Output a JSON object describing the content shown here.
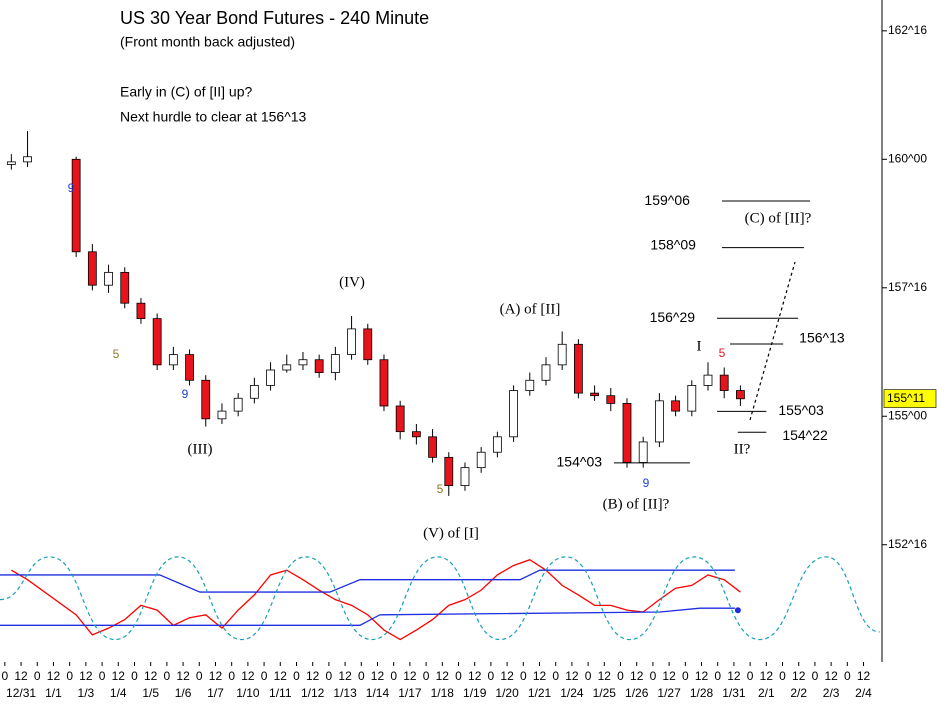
{
  "chart_data": {
    "type": "candlestick",
    "title": "US 30 Year Bond Futures - 240 Minute",
    "subtitle": "(Front month back adjusted)",
    "notes": [
      "Early in (C) of [II] up?",
      "Next hurdle to clear at 156^13"
    ],
    "up_color": "#ffffff",
    "down_color": "#e8141c",
    "x": [
      0.2,
      0.7,
      2.2,
      2.7,
      3.2,
      3.7,
      4.2,
      4.7,
      5.2,
      5.7,
      6.2,
      6.7,
      7.2,
      7.7,
      8.2,
      8.7,
      9.2,
      9.7,
      10.2,
      10.7,
      11.2,
      11.7,
      12.2,
      12.7,
      13.2,
      13.7,
      14.2,
      14.7,
      15.2,
      15.7,
      16.2,
      16.7,
      17.2,
      17.7,
      18.2,
      18.7,
      19.2,
      19.7,
      20.2,
      20.7,
      21.2,
      21.7,
      22.2,
      22.7
    ],
    "open": [
      159.9,
      159.95,
      160.0,
      158.2,
      157.55,
      157.8,
      157.2,
      156.9,
      156.0,
      156.2,
      155.7,
      154.95,
      155.1,
      155.35,
      155.6,
      155.9,
      156.0,
      156.1,
      155.85,
      156.2,
      156.7,
      156.1,
      155.2,
      154.7,
      154.6,
      154.2,
      153.65,
      154.0,
      154.3,
      154.6,
      155.5,
      155.7,
      156.0,
      156.4,
      155.45,
      155.4,
      155.25,
      154.1,
      154.5,
      155.3,
      155.1,
      155.6,
      155.8,
      155.5
    ],
    "high": [
      160.1,
      160.55,
      160.05,
      158.35,
      157.95,
      157.9,
      157.3,
      157.0,
      156.35,
      156.3,
      155.8,
      155.25,
      155.45,
      155.75,
      156.05,
      156.2,
      156.25,
      156.2,
      156.35,
      156.95,
      156.8,
      156.2,
      155.3,
      154.85,
      154.75,
      154.3,
      154.1,
      154.4,
      154.7,
      155.6,
      155.85,
      156.15,
      156.65,
      156.5,
      155.6,
      155.55,
      155.35,
      154.6,
      155.45,
      155.4,
      155.7,
      156.05,
      155.95,
      155.6
    ],
    "low": [
      159.8,
      159.85,
      158.1,
      157.45,
      157.4,
      157.1,
      156.8,
      155.9,
      155.9,
      155.6,
      154.8,
      154.85,
      155.0,
      155.25,
      155.5,
      155.85,
      155.9,
      155.75,
      155.7,
      156.1,
      156.0,
      155.1,
      154.55,
      154.45,
      154.1,
      153.45,
      153.55,
      153.9,
      154.2,
      154.5,
      155.4,
      155.6,
      155.9,
      155.35,
      155.3,
      155.1,
      154.0,
      154.0,
      154.4,
      155.0,
      155.0,
      155.5,
      155.35,
      155.2
    ],
    "close": [
      159.95,
      160.05,
      158.2,
      157.55,
      157.8,
      157.2,
      156.9,
      156.0,
      156.2,
      155.7,
      154.95,
      155.1,
      155.35,
      155.6,
      155.9,
      156.0,
      156.1,
      155.85,
      156.2,
      156.7,
      156.1,
      155.2,
      154.7,
      154.6,
      154.2,
      153.65,
      154.0,
      154.3,
      154.6,
      155.5,
      155.7,
      156.0,
      156.4,
      155.45,
      155.4,
      155.25,
      154.1,
      154.5,
      155.3,
      155.1,
      155.6,
      155.8,
      155.5,
      155.34
    ],
    "xlim": [
      -0.15,
      27.07
    ],
    "ylim": [
      152.3,
      163.1
    ],
    "yticks": [
      {
        "value": 162.5,
        "label": "162^16"
      },
      {
        "value": 160,
        "label": "160^00"
      },
      {
        "value": 157.5,
        "label": "157^16"
      },
      {
        "value": 155,
        "label": "155^00"
      },
      {
        "value": 152.5,
        "label": "152^16"
      }
    ],
    "last_price": {
      "value": 155.34375,
      "label": "155^11",
      "color": "#ffff00"
    },
    "xticks": [
      {
        "value": 0,
        "label": "0"
      },
      {
        "value": 0.5,
        "label": "12"
      },
      {
        "value": 1,
        "label": "0"
      },
      {
        "value": 1.5,
        "label": "12"
      },
      {
        "value": 2,
        "label": "0"
      },
      {
        "value": 2.5,
        "label": "12"
      },
      {
        "value": 3,
        "label": "0"
      },
      {
        "value": 3.5,
        "label": "12"
      },
      {
        "value": 4,
        "label": "0"
      },
      {
        "value": 4.5,
        "label": "12"
      },
      {
        "value": 5,
        "label": "0"
      },
      {
        "value": 5.5,
        "label": "12"
      },
      {
        "value": 6,
        "label": "0"
      },
      {
        "value": 6.5,
        "label": "12"
      },
      {
        "value": 7,
        "label": "0"
      },
      {
        "value": 7.5,
        "label": "12"
      },
      {
        "value": 8,
        "label": "0"
      },
      {
        "value": 8.5,
        "label": "12"
      },
      {
        "value": 9,
        "label": "0"
      },
      {
        "value": 9.5,
        "label": "12"
      },
      {
        "value": 10,
        "label": "0"
      },
      {
        "value": 10.5,
        "label": "12"
      },
      {
        "value": 11,
        "label": "0"
      },
      {
        "value": 11.5,
        "label": "12"
      },
      {
        "value": 12,
        "label": "0"
      },
      {
        "value": 12.5,
        "label": "12"
      },
      {
        "value": 13,
        "label": "0"
      },
      {
        "value": 13.5,
        "label": "12"
      },
      {
        "value": 14,
        "label": "0"
      },
      {
        "value": 14.5,
        "label": "12"
      },
      {
        "value": 15,
        "label": "0"
      },
      {
        "value": 15.5,
        "label": "12"
      },
      {
        "value": 16,
        "label": "0"
      },
      {
        "value": 16.5,
        "label": "12"
      },
      {
        "value": 17,
        "label": "0"
      },
      {
        "value": 17.5,
        "label": "12"
      },
      {
        "value": 18,
        "label": "0"
      },
      {
        "value": 18.5,
        "label": "12"
      },
      {
        "value": 19,
        "label": "0"
      },
      {
        "value": 19.5,
        "label": "12"
      },
      {
        "value": 20,
        "label": "0"
      },
      {
        "value": 20.5,
        "label": "12"
      },
      {
        "value": 21,
        "label": "0"
      },
      {
        "value": 21.5,
        "label": "12"
      },
      {
        "value": 22,
        "label": "0"
      },
      {
        "value": 22.5,
        "label": "12"
      },
      {
        "value": 23,
        "label": "0"
      },
      {
        "value": 23.5,
        "label": "12"
      },
      {
        "value": 24,
        "label": "0"
      },
      {
        "value": 24.5,
        "label": "12"
      },
      {
        "value": 25,
        "label": "0"
      },
      {
        "value": 25.5,
        "label": "12"
      },
      {
        "value": 26,
        "label": "0"
      },
      {
        "value": 26.5,
        "label": "12"
      }
    ],
    "date_ticks": [
      {
        "value": 0.5,
        "label": "12/31"
      },
      {
        "value": 1.5,
        "label": "1/1"
      },
      {
        "value": 2.5,
        "label": "1/3"
      },
      {
        "value": 3.5,
        "label": "1/4"
      },
      {
        "value": 4.5,
        "label": "1/5"
      },
      {
        "value": 5.5,
        "label": "1/6"
      },
      {
        "value": 6.5,
        "label": "1/7"
      },
      {
        "value": 7.5,
        "label": "1/10"
      },
      {
        "value": 8.5,
        "label": "1/11"
      },
      {
        "value": 9.5,
        "label": "1/12"
      },
      {
        "value": 10.5,
        "label": "1/13"
      },
      {
        "value": 11.5,
        "label": "1/14"
      },
      {
        "value": 12.5,
        "label": "1/17"
      },
      {
        "value": 13.5,
        "label": "1/18"
      },
      {
        "value": 14.5,
        "label": "1/19"
      },
      {
        "value": 15.5,
        "label": "1/20"
      },
      {
        "value": 16.5,
        "label": "1/21"
      },
      {
        "value": 17.5,
        "label": "1/24"
      },
      {
        "value": 18.5,
        "label": "1/25"
      },
      {
        "value": 19.5,
        "label": "1/26"
      },
      {
        "value": 20.5,
        "label": "1/27"
      },
      {
        "value": 21.5,
        "label": "1/28"
      },
      {
        "value": 22.5,
        "label": "1/31"
      },
      {
        "value": 23.5,
        "label": "2/1"
      },
      {
        "value": 24.5,
        "label": "2/2"
      },
      {
        "value": 25.5,
        "label": "2/3"
      },
      {
        "value": 26.5,
        "label": "2/4"
      }
    ],
    "levels": [
      {
        "value": 159.1875,
        "label": "159^06",
        "x": [
          22.13,
          24.85
        ]
      },
      {
        "value": 158.28125,
        "label": "158^09",
        "x": [
          22.13,
          24.66
        ]
      },
      {
        "value": 156.90625,
        "label": "156^29",
        "x": [
          21.98,
          24.48
        ]
      },
      {
        "value": 156.40625,
        "label": "156^13",
        "x": [
          22.38,
          24.02
        ]
      },
      {
        "value": 155.09375,
        "label": "155^03",
        "x": [
          21.98,
          23.5
        ]
      },
      {
        "value": 154.6875,
        "label": "154^22",
        "x": [
          22.62,
          23.5
        ]
      },
      {
        "value": 154.09375,
        "label": "154^03",
        "x": [
          18.8,
          21.14
        ]
      }
    ],
    "annotations": [
      {
        "text": "(C) of [II]?",
        "color": "#000000"
      },
      {
        "text": "(IV)",
        "color": "#000000"
      },
      {
        "text": "(A) of [II]",
        "color": "#000000"
      },
      {
        "text": "I",
        "color": "#000000"
      },
      {
        "text": "(III)",
        "color": "#000000"
      },
      {
        "text": "(V) of [I]",
        "color": "#000000"
      },
      {
        "text": "(B) of [II]?",
        "color": "#000000"
      },
      {
        "text": "II?",
        "color": "#000000"
      },
      {
        "text": "9",
        "color": "#1f3fd0"
      },
      {
        "text": "5",
        "color": "#8a7a20"
      },
      {
        "text": "9",
        "color": "#1f3fd0"
      },
      {
        "text": "5",
        "color": "#8a7a20"
      },
      {
        "text": "9",
        "color": "#1f3fd0"
      },
      {
        "text": "5",
        "color": "#e8141c"
      }
    ],
    "indicator": {
      "ylim": [
        0,
        100
      ],
      "series": [
        {
          "color": "#ff0000",
          "values": [
            84,
            74,
            37,
            16,
            23,
            32,
            47,
            42,
            26,
            34,
            37,
            23,
            42,
            58,
            79,
            84,
            74,
            63,
            53,
            47,
            37,
            21,
            11,
            21,
            32,
            47,
            53,
            63,
            79,
            89,
            95,
            84,
            68,
            58,
            47,
            47,
            42,
            40,
            53,
            65,
            68,
            79,
            74,
            61
          ]
        },
        {
          "color": "#1e2ee0",
          "x": [
            -0.15,
            4.78,
            6.02,
            10.03,
            10.96,
            15.9,
            16.51,
            22.53
          ],
          "values": [
            79,
            79,
            61,
            61,
            74,
            74,
            84,
            84
          ]
        },
        {
          "color": "#1e2ee0",
          "x": [
            -0.15,
            10.96,
            11.57,
            20.22,
            21.45,
            22.53
          ],
          "values": [
            26,
            26,
            37,
            40,
            44,
            44
          ],
          "end_marker": true
        },
        {
          "color": "#1aa0b8",
          "dashed": true,
          "x": [
            -0.15,
            1.39,
            3.4,
            5.34,
            7.31,
            9.29,
            11.33,
            13.36,
            15.28,
            17.31,
            19.29,
            21.27,
            23.3,
            25.34,
            27.0
          ],
          "values": [
            53,
            98,
            11,
            98,
            11,
            98,
            11,
            98,
            11,
            98,
            11,
            98,
            11,
            98,
            19
          ]
        }
      ]
    }
  }
}
